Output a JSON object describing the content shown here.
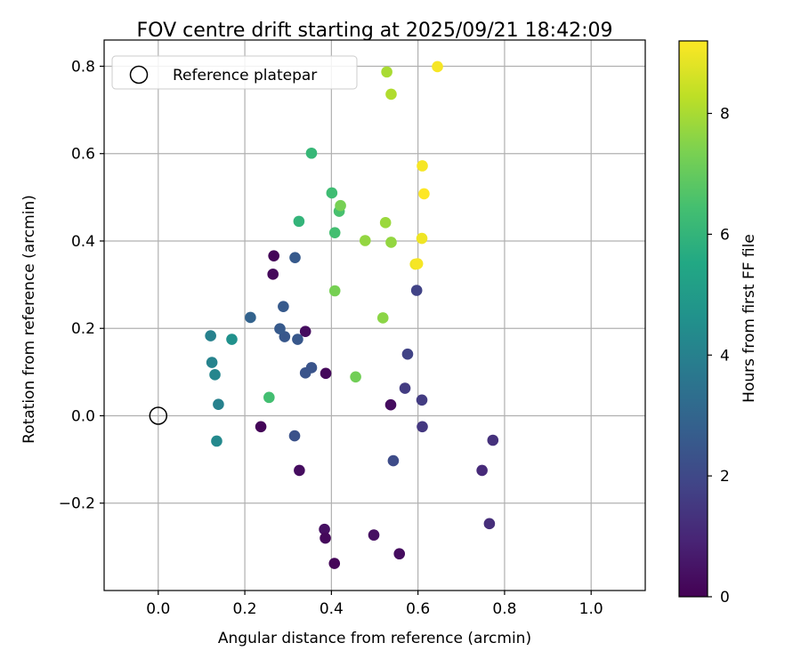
{
  "chart_data": {
    "type": "scatter",
    "title": "FOV centre drift starting at 2025/09/21 18:42:09",
    "xlabel": "Angular distance from reference (arcmin)",
    "ylabel": "Rotation from reference (arcmin)",
    "xlim": [
      -0.125,
      1.125
    ],
    "ylim": [
      -0.4,
      0.86
    ],
    "xticks": [
      0.0,
      0.2,
      0.4,
      0.6,
      0.8,
      1.0
    ],
    "xtick_labels": [
      "0.0",
      "0.2",
      "0.4",
      "0.6",
      "0.8",
      "1.0"
    ],
    "yticks": [
      -0.2,
      0.0,
      0.2,
      0.4,
      0.6,
      0.8
    ],
    "ytick_labels": [
      "−0.2",
      "0.0",
      "0.2",
      "0.4",
      "0.6",
      "0.8"
    ],
    "grid": true,
    "legend": {
      "position": "top-left",
      "entries": [
        "Reference platepar"
      ]
    },
    "reference_point": {
      "x": 0.0,
      "y": 0.0
    },
    "colorbar": {
      "label": "Hours from first FF file",
      "colormap": "viridis",
      "range": [
        0,
        9.2
      ],
      "ticks": [
        0,
        2,
        4,
        6,
        8
      ],
      "tick_labels": [
        "0",
        "2",
        "4",
        "6",
        "8"
      ]
    },
    "points": [
      {
        "x": 0.267,
        "y": 0.366,
        "hours": 0.1
      },
      {
        "x": 0.265,
        "y": 0.324,
        "hours": 0.2
      },
      {
        "x": 0.34,
        "y": 0.193,
        "hours": 0.3
      },
      {
        "x": 0.387,
        "y": 0.097,
        "hours": 0.2
      },
      {
        "x": 0.537,
        "y": 0.025,
        "hours": 0.3
      },
      {
        "x": 0.237,
        "y": -0.025,
        "hours": 0.1
      },
      {
        "x": 0.326,
        "y": -0.125,
        "hours": 0.3
      },
      {
        "x": 0.384,
        "y": -0.26,
        "hours": 0.4
      },
      {
        "x": 0.386,
        "y": -0.28,
        "hours": 0.2
      },
      {
        "x": 0.407,
        "y": -0.338,
        "hours": 0.1
      },
      {
        "x": 0.498,
        "y": -0.273,
        "hours": 0.4
      },
      {
        "x": 0.557,
        "y": -0.316,
        "hours": 0.3
      },
      {
        "x": 0.748,
        "y": -0.125,
        "hours": 1.1
      },
      {
        "x": 0.765,
        "y": -0.247,
        "hours": 1.2
      },
      {
        "x": 0.773,
        "y": -0.056,
        "hours": 1.3
      },
      {
        "x": 0.61,
        "y": -0.025,
        "hours": 1.5
      },
      {
        "x": 0.609,
        "y": 0.036,
        "hours": 1.6
      },
      {
        "x": 0.57,
        "y": 0.063,
        "hours": 1.6
      },
      {
        "x": 0.576,
        "y": 0.141,
        "hours": 1.8
      },
      {
        "x": 0.597,
        "y": 0.287,
        "hours": 1.8
      },
      {
        "x": 0.543,
        "y": -0.103,
        "hours": 2.1
      },
      {
        "x": 0.315,
        "y": -0.046,
        "hours": 2.3
      },
      {
        "x": 0.34,
        "y": 0.098,
        "hours": 2.4
      },
      {
        "x": 0.354,
        "y": 0.11,
        "hours": 2.4
      },
      {
        "x": 0.322,
        "y": 0.175,
        "hours": 2.5
      },
      {
        "x": 0.292,
        "y": 0.181,
        "hours": 2.5
      },
      {
        "x": 0.281,
        "y": 0.199,
        "hours": 2.6
      },
      {
        "x": 0.289,
        "y": 0.25,
        "hours": 2.6
      },
      {
        "x": 0.316,
        "y": 0.362,
        "hours": 2.6
      },
      {
        "x": 0.213,
        "y": 0.225,
        "hours": 2.9
      },
      {
        "x": 0.121,
        "y": 0.183,
        "hours": 4.0
      },
      {
        "x": 0.124,
        "y": 0.122,
        "hours": 4.1
      },
      {
        "x": 0.131,
        "y": 0.094,
        "hours": 4.2
      },
      {
        "x": 0.139,
        "y": 0.026,
        "hours": 4.0
      },
      {
        "x": 0.135,
        "y": -0.058,
        "hours": 4.3
      },
      {
        "x": 0.17,
        "y": 0.175,
        "hours": 4.6
      },
      {
        "x": 0.256,
        "y": 0.042,
        "hours": 6.4
      },
      {
        "x": 0.325,
        "y": 0.445,
        "hours": 6.0
      },
      {
        "x": 0.354,
        "y": 0.601,
        "hours": 6.1
      },
      {
        "x": 0.401,
        "y": 0.51,
        "hours": 6.3
      },
      {
        "x": 0.408,
        "y": 0.419,
        "hours": 6.4
      },
      {
        "x": 0.418,
        "y": 0.468,
        "hours": 6.5
      },
      {
        "x": 0.421,
        "y": 0.481,
        "hours": 7.3
      },
      {
        "x": 0.408,
        "y": 0.286,
        "hours": 7.3
      },
      {
        "x": 0.456,
        "y": 0.089,
        "hours": 7.2
      },
      {
        "x": 0.478,
        "y": 0.401,
        "hours": 7.7
      },
      {
        "x": 0.519,
        "y": 0.224,
        "hours": 7.6
      },
      {
        "x": 0.525,
        "y": 0.442,
        "hours": 7.8
      },
      {
        "x": 0.538,
        "y": 0.397,
        "hours": 7.7
      },
      {
        "x": 0.528,
        "y": 0.787,
        "hours": 8.0
      },
      {
        "x": 0.538,
        "y": 0.736,
        "hours": 8.1
      },
      {
        "x": 0.594,
        "y": 0.347,
        "hours": 9.0
      },
      {
        "x": 0.599,
        "y": 0.348,
        "hours": 9.1
      },
      {
        "x": 0.609,
        "y": 0.406,
        "hours": 9.0
      },
      {
        "x": 0.61,
        "y": 0.572,
        "hours": 9.1
      },
      {
        "x": 0.614,
        "y": 0.508,
        "hours": 9.2
      },
      {
        "x": 0.645,
        "y": 0.799,
        "hours": 9.1
      }
    ]
  }
}
